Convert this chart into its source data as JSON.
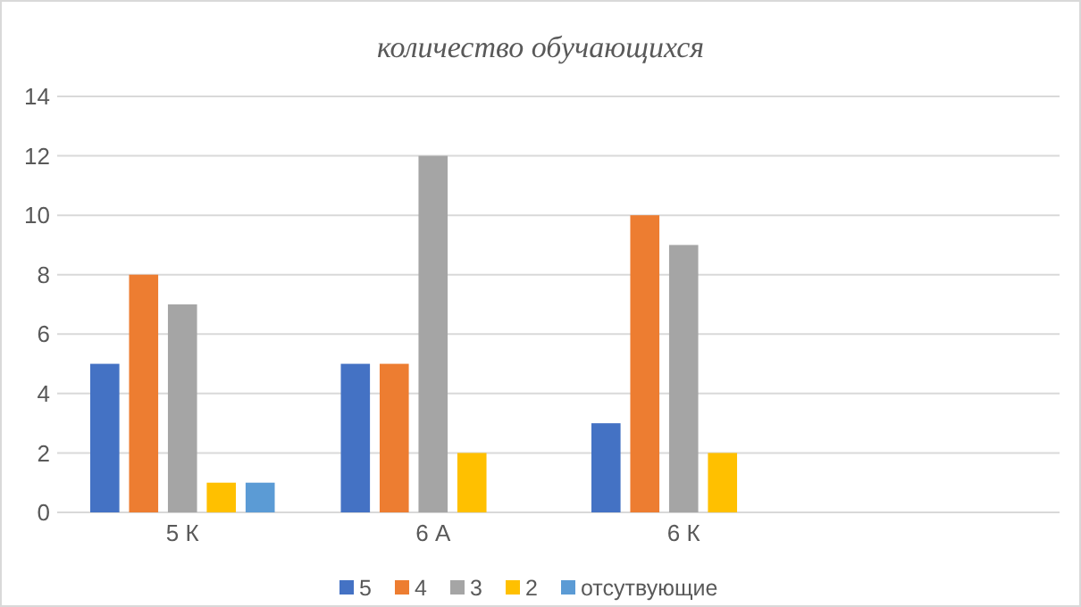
{
  "chart_data": {
    "type": "bar",
    "title": "количество обучающихся",
    "categories": [
      "5 К",
      "6 А",
      "6 К",
      null
    ],
    "series": [
      {
        "name": "5",
        "color": "#4472c4",
        "values": [
          5,
          5,
          3,
          null
        ]
      },
      {
        "name": "4",
        "color": "#ed7d31",
        "values": [
          8,
          5,
          10,
          null
        ]
      },
      {
        "name": "3",
        "color": "#a5a5a5",
        "values": [
          7,
          12,
          9,
          null
        ]
      },
      {
        "name": "2",
        "color": "#ffc000",
        "values": [
          1,
          2,
          2,
          null
        ]
      },
      {
        "name": "отсутвующие",
        "color": "#5b9bd5",
        "values": [
          1,
          null,
          null,
          null
        ]
      }
    ],
    "ylim": [
      0,
      14
    ],
    "yticks": [
      0,
      2,
      4,
      6,
      8,
      10,
      12,
      14
    ],
    "grid": "y",
    "legend": "bottom"
  }
}
